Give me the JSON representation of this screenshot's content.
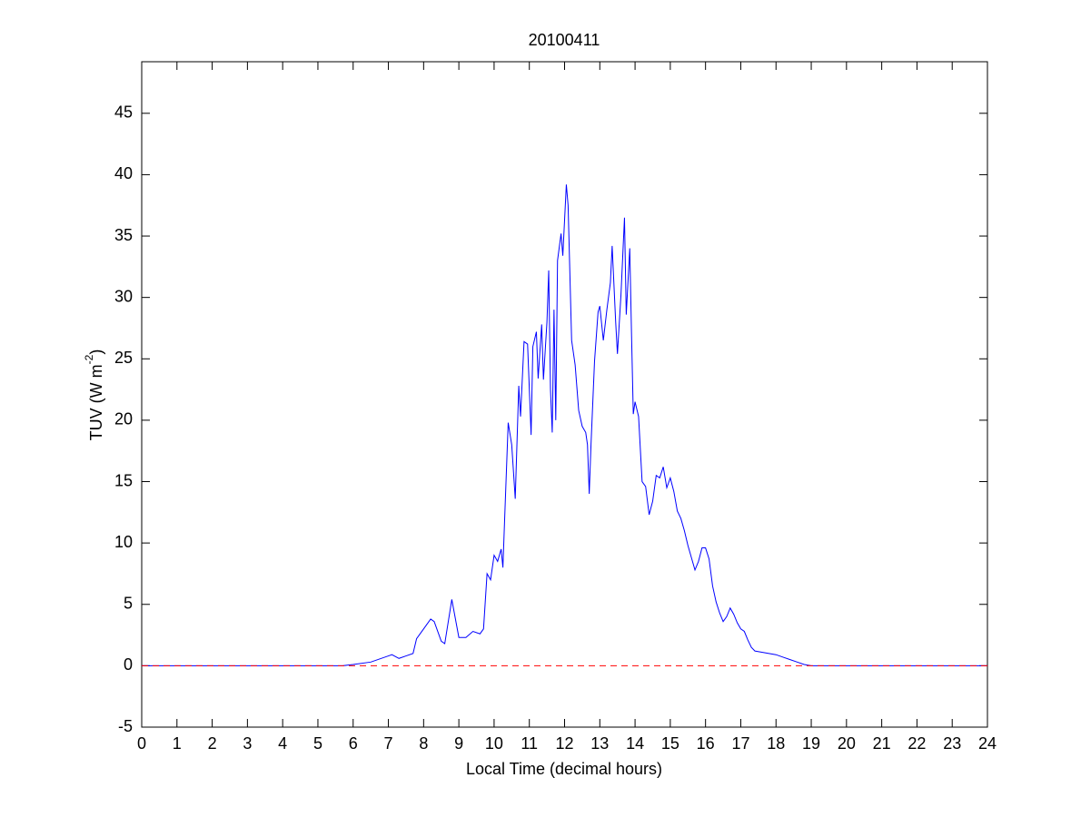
{
  "chart_data": {
    "type": "line",
    "title": "20100411",
    "xlabel": "Local Time (decimal hours)",
    "ylabel_parts": [
      "TUV (W m",
      "-2",
      ")"
    ],
    "xlim": [
      0,
      24
    ],
    "ylim": [
      -5,
      49.2
    ],
    "xticks": [
      0,
      1,
      2,
      3,
      4,
      5,
      6,
      7,
      8,
      9,
      10,
      11,
      12,
      13,
      14,
      15,
      16,
      17,
      18,
      19,
      20,
      21,
      22,
      23,
      24
    ],
    "yticks": [
      -5,
      0,
      5,
      10,
      15,
      20,
      25,
      30,
      35,
      40,
      45
    ],
    "hline": {
      "value": 0,
      "color": "#ff0000",
      "style": "dashed"
    },
    "series": [
      {
        "name": "TUV",
        "color": "#0000ff",
        "x": [
          0,
          5.7,
          6,
          6.5,
          7,
          7.1,
          7.3,
          7.5,
          7.7,
          7.8,
          8,
          8.2,
          8.3,
          8.5,
          8.6,
          8.8,
          9,
          9.2,
          9.4,
          9.6,
          9.7,
          9.8,
          9.9,
          10,
          10.1,
          10.2,
          10.25,
          10.3,
          10.4,
          10.5,
          10.6,
          10.7,
          10.75,
          10.85,
          10.95,
          11.05,
          11.1,
          11.2,
          11.25,
          11.35,
          11.4,
          11.5,
          11.55,
          11.6,
          11.65,
          11.7,
          11.75,
          11.8,
          11.9,
          11.95,
          12.05,
          12.1,
          12.2,
          12.3,
          12.4,
          12.5,
          12.6,
          12.65,
          12.7,
          12.75,
          12.85,
          12.95,
          13,
          13.1,
          13.2,
          13.3,
          13.35,
          13.45,
          13.5,
          13.6,
          13.7,
          13.75,
          13.85,
          13.9,
          13.95,
          14,
          14.1,
          14.2,
          14.3,
          14.4,
          14.5,
          14.6,
          14.7,
          14.8,
          14.9,
          15,
          15.1,
          15.2,
          15.3,
          15.4,
          15.5,
          15.6,
          15.7,
          15.8,
          15.9,
          16,
          16.1,
          16.2,
          16.3,
          16.4,
          16.5,
          16.6,
          16.7,
          16.8,
          16.9,
          17,
          17.1,
          17.2,
          17.3,
          17.4,
          17.6,
          17.8,
          18,
          18.2,
          18.4,
          18.6,
          18.8,
          19,
          24
        ],
        "values": [
          0,
          0,
          0.1,
          0.3,
          0.8,
          0.9,
          0.6,
          0.8,
          1.0,
          2.2,
          3,
          3.8,
          3.6,
          2,
          1.8,
          5.4,
          2.3,
          2.3,
          2.8,
          2.6,
          3,
          7.5,
          7,
          9,
          8.5,
          9.5,
          8,
          12,
          19.8,
          18,
          13.6,
          22.8,
          20.3,
          26.4,
          26.2,
          18.8,
          26,
          27.2,
          23.4,
          27.8,
          23.3,
          28,
          32.2,
          22.5,
          19,
          29,
          20,
          33,
          35.2,
          33.4,
          39.2,
          37.5,
          26.5,
          24.5,
          20.8,
          19.5,
          19,
          18,
          14,
          18,
          24.8,
          28.8,
          29.3,
          26.5,
          29,
          31.2,
          34.2,
          28,
          25.4,
          30.2,
          36.5,
          28.6,
          34,
          27,
          20.5,
          21.5,
          20.3,
          15,
          14.6,
          12.3,
          13.4,
          15.5,
          15.3,
          16.2,
          14.5,
          15.3,
          14.2,
          12.6,
          12,
          11,
          9.8,
          8.8,
          7.8,
          8.5,
          9.6,
          9.6,
          8.7,
          6.5,
          5.2,
          4.3,
          3.6,
          4.0,
          4.7,
          4.2,
          3.5,
          3.0,
          2.8,
          2.1,
          1.5,
          1.2,
          1.1,
          1.0,
          0.9,
          0.7,
          0.5,
          0.3,
          0.1,
          0,
          0
        ]
      }
    ]
  }
}
